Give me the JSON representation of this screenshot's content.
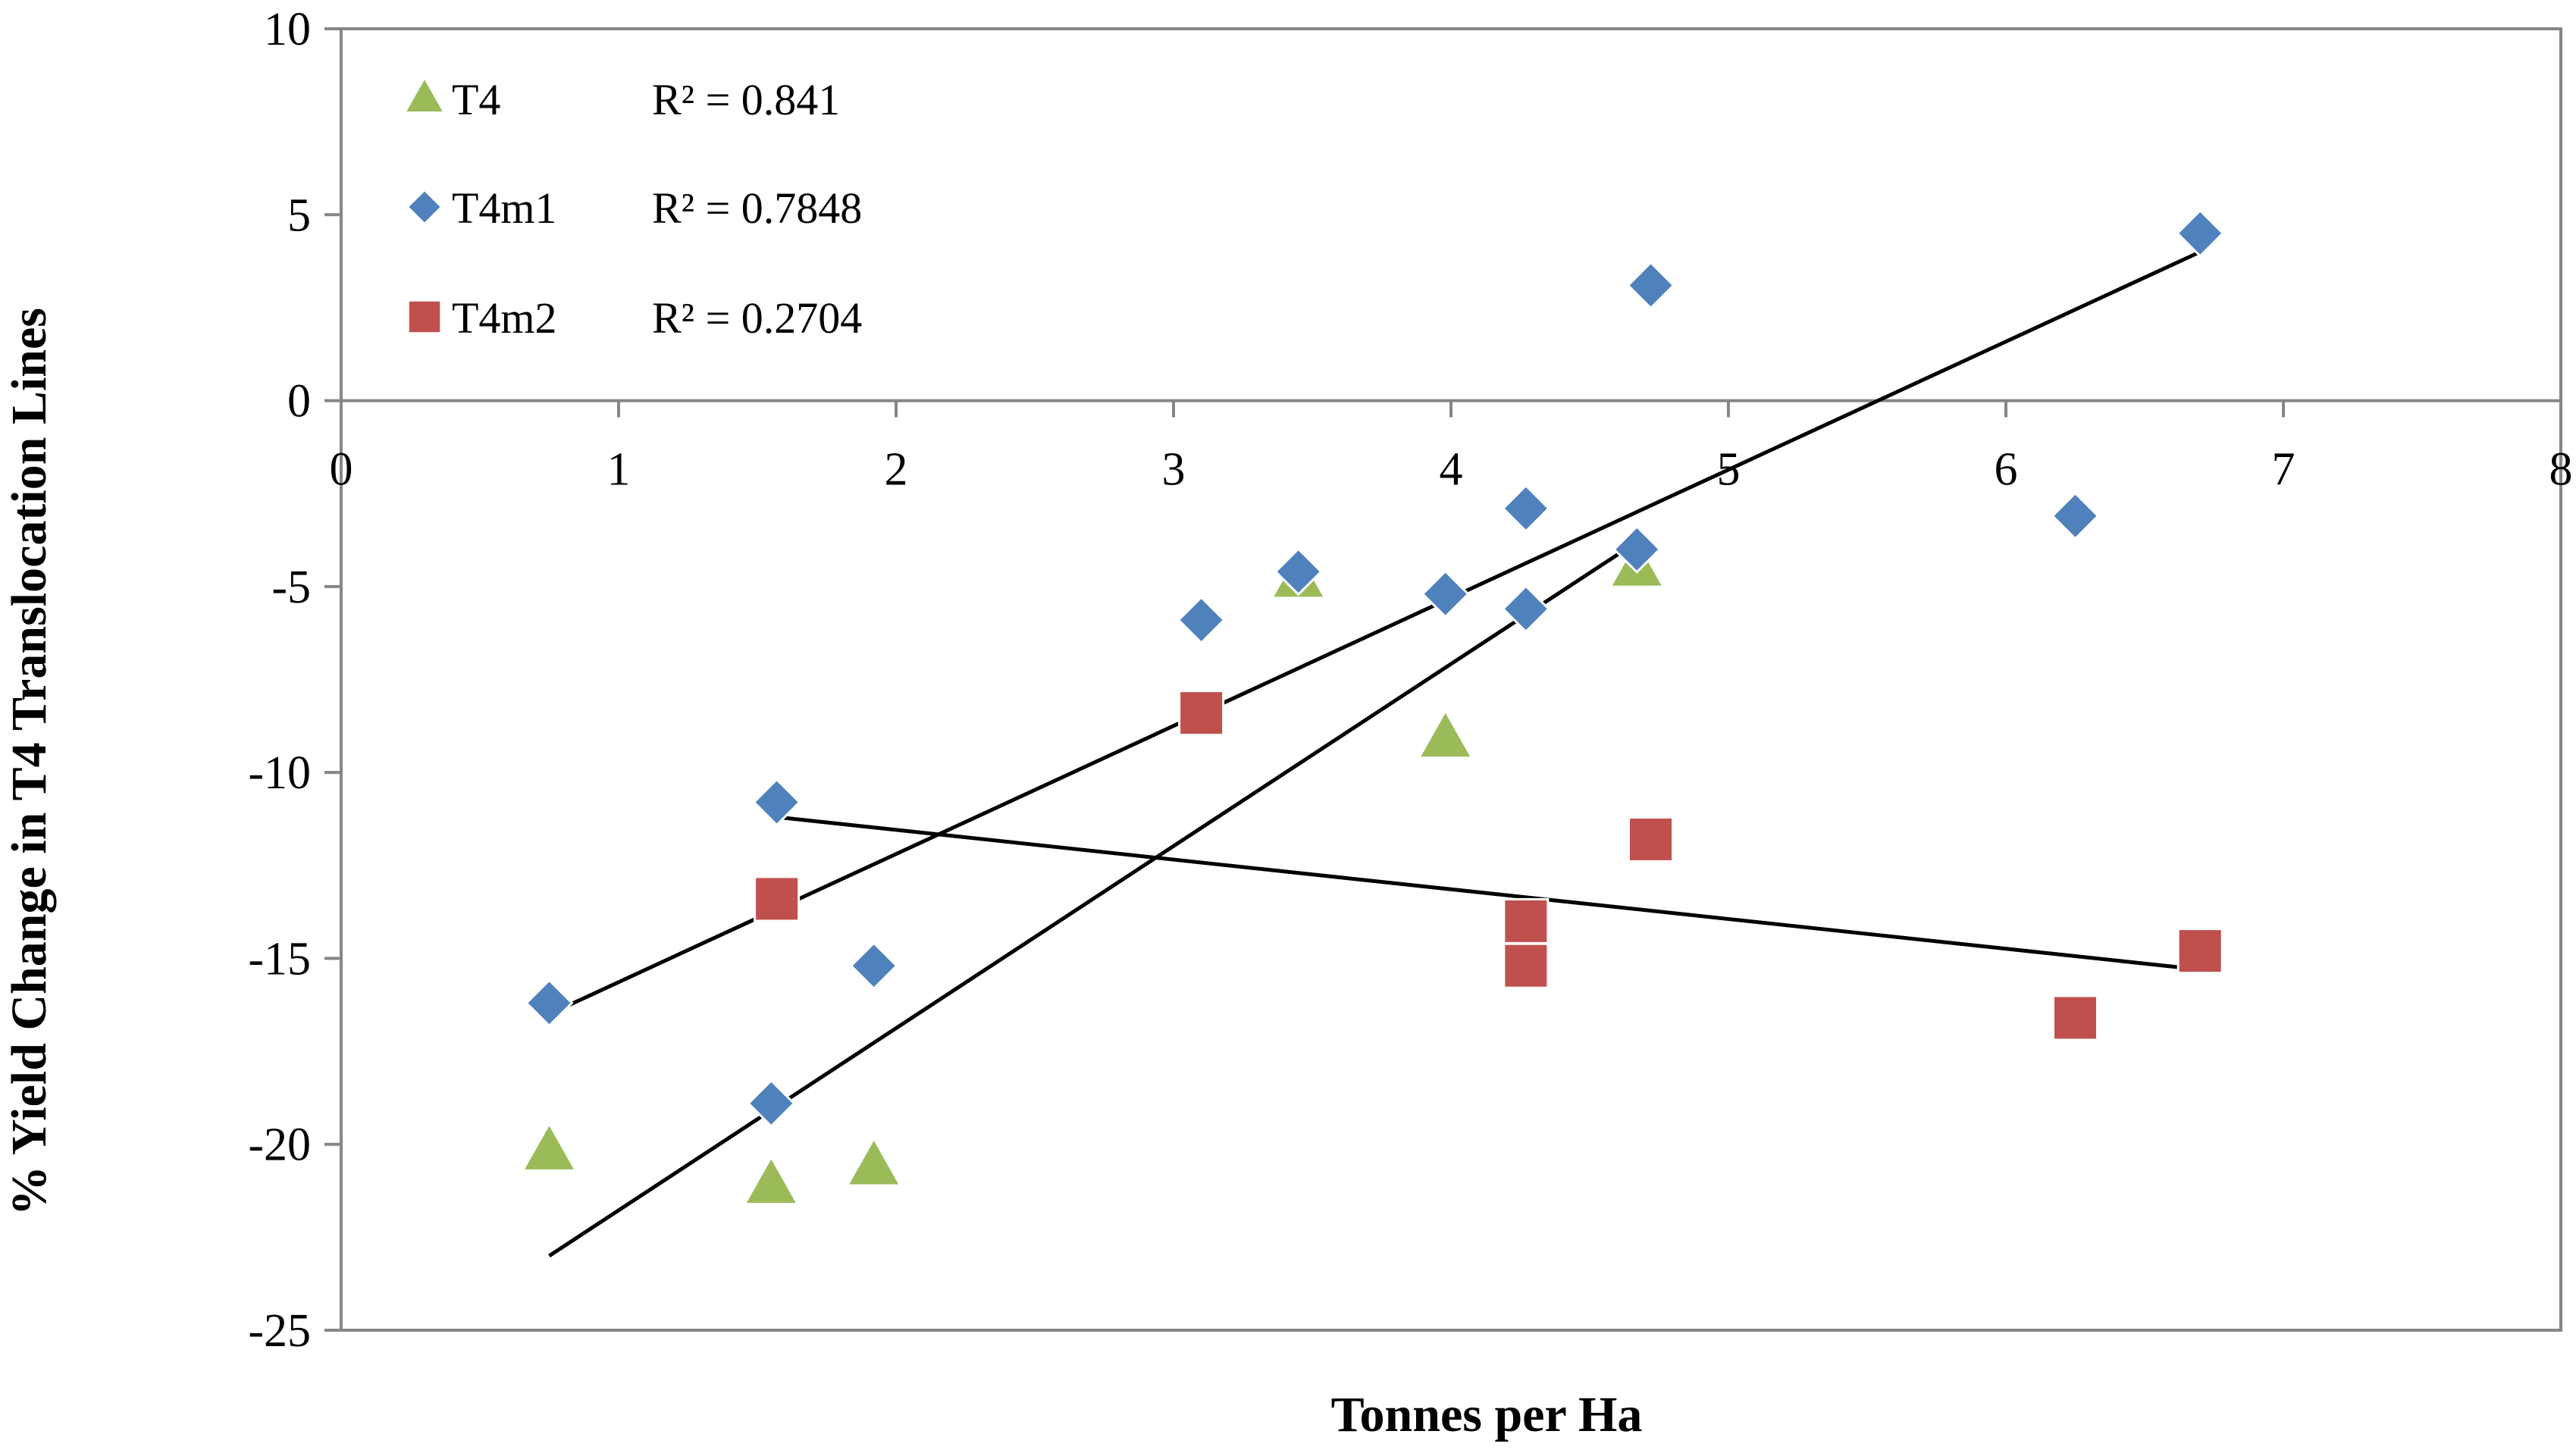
{
  "chart_data": {
    "type": "scatter",
    "title": "",
    "xlabel": "Tonnes per Ha",
    "ylabel": "% Yield Change in T4 Translocation Lines",
    "xlim": [
      0,
      8
    ],
    "ylim": [
      -25,
      10
    ],
    "x_ticks": [
      "0",
      "1",
      "2",
      "3",
      "4",
      "5",
      "6",
      "7",
      "8"
    ],
    "y_ticks": [
      "10",
      "5",
      "0",
      "-5",
      "-10",
      "-15",
      "-20",
      "-25"
    ],
    "x_tick_values": [
      0,
      1,
      2,
      3,
      4,
      5,
      6,
      7,
      8
    ],
    "y_tick_values": [
      10,
      5,
      0,
      -5,
      -10,
      -15,
      -20,
      -25
    ],
    "grid": false,
    "legend_position": "top-left",
    "series": [
      {
        "name": "T4",
        "marker": "triangle",
        "color": "#9BBB59",
        "r2_label": "R² = 0.841",
        "points": [
          {
            "x": 0.75,
            "y": -20.2
          },
          {
            "x": 1.55,
            "y": -21.1
          },
          {
            "x": 1.92,
            "y": -20.6
          },
          {
            "x": 3.45,
            "y": -4.8
          },
          {
            "x": 3.98,
            "y": -9.1
          },
          {
            "x": 4.67,
            "y": -4.5
          }
        ],
        "trendline": {
          "x1": 0.75,
          "y1": -23.0,
          "x2": 4.67,
          "y2": -3.8
        }
      },
      {
        "name": "T4m1",
        "marker": "diamond",
        "color": "#4F81BD",
        "r2_label": "R² = 0.7848",
        "points": [
          {
            "x": 0.75,
            "y": -16.2
          },
          {
            "x": 1.55,
            "y": -18.9
          },
          {
            "x": 1.57,
            "y": -10.8
          },
          {
            "x": 1.92,
            "y": -15.2
          },
          {
            "x": 3.1,
            "y": -5.9
          },
          {
            "x": 3.45,
            "y": -4.6
          },
          {
            "x": 3.98,
            "y": -5.2
          },
          {
            "x": 4.27,
            "y": -2.9
          },
          {
            "x": 4.27,
            "y": -5.6
          },
          {
            "x": 4.67,
            "y": -4.0
          },
          {
            "x": 4.72,
            "y": 3.1
          },
          {
            "x": 6.25,
            "y": -3.1
          },
          {
            "x": 6.7,
            "y": 4.5
          }
        ],
        "trendline": {
          "x1": 0.75,
          "y1": -16.5,
          "x2": 6.7,
          "y2": 4.0
        }
      },
      {
        "name": "T4m2",
        "marker": "square",
        "color": "#C0504D",
        "r2_label": "R² = 0.2704",
        "points": [
          {
            "x": 1.57,
            "y": -13.4
          },
          {
            "x": 3.1,
            "y": -8.4
          },
          {
            "x": 4.27,
            "y": -14.0
          },
          {
            "x": 4.27,
            "y": -15.2
          },
          {
            "x": 4.72,
            "y": -11.8
          },
          {
            "x": 6.25,
            "y": -16.6
          },
          {
            "x": 6.7,
            "y": -14.8
          }
        ],
        "trendline": {
          "x1": 1.57,
          "y1": -11.2,
          "x2": 6.7,
          "y2": -15.3
        }
      }
    ]
  }
}
